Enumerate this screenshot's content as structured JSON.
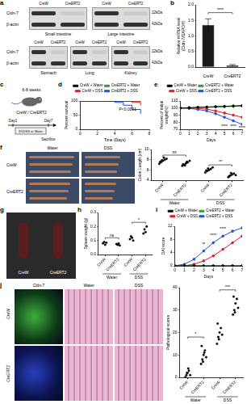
{
  "figure": {
    "a": {
      "panel": "a",
      "lane_labels": [
        "CreW",
        "CreERT2"
      ],
      "bands": [
        "Cldn-7",
        "β-actin"
      ],
      "sizes": [
        "22kDa",
        "42kDa"
      ],
      "rows": [
        {
          "tissues": [
            "Small intestine",
            "Large intestine"
          ]
        },
        {
          "tissues": [
            "Stomach",
            "Lung",
            "Kidney"
          ]
        }
      ]
    },
    "c": {
      "panel": "c",
      "age": "6-8 weeks",
      "mice": "CreW / CreERT2",
      "start": "Day1",
      "end": "Day7",
      "treatment": "3%DSS or Water",
      "endpoint": "Sacrifice"
    },
    "f": {
      "panel": "f",
      "columns": [
        "Water",
        "DSS"
      ],
      "rows": [
        "CreW",
        "CreERT2"
      ]
    },
    "g": {
      "panel": "g",
      "labels": [
        "CreW",
        "CreERT2"
      ]
    },
    "j": {
      "panel": "j",
      "columns": [
        "Cldn-7",
        "Water",
        "DSS"
      ],
      "rows": [
        "CreW",
        "CreERT2"
      ]
    }
  },
  "chart_data": [
    {
      "panel": "b",
      "type": "bar",
      "categories": [
        "CreW",
        "CreERT2"
      ],
      "values": [
        1.35,
        0.05
      ],
      "errors": [
        0.2,
        0.03
      ],
      "color": "#1a1a1a",
      "y_label": [
        "Relative mRNA level",
        "(Cldn-7/GAPDH)"
      ],
      "ylim": [
        0,
        2
      ],
      "yticks": [
        {
          "value": 0,
          "label": "0.0"
        },
        0.5,
        {
          "value": 1,
          "label": "1.0"
        },
        1.5,
        {
          "value": 2,
          "label": "2.0"
        }
      ],
      "grid": false,
      "annotations": [
        {
          "text": "****",
          "from": 0,
          "to": 1,
          "y": 1.75
        }
      ]
    },
    {
      "panel": "d",
      "type": "line",
      "line_style": "step",
      "x": [
        0,
        1,
        2,
        3,
        4,
        5,
        6,
        7
      ],
      "series": [
        {
          "name": "CreW + Water",
          "color": "#000000",
          "values": [
            100,
            100,
            100,
            100,
            100,
            100,
            100,
            100
          ]
        },
        {
          "name": "CreERT2 + Water",
          "color": "#2ca02c",
          "values": [
            100,
            100,
            100,
            100,
            100,
            100,
            100,
            100
          ]
        },
        {
          "name": "CreW + DSS",
          "color": "#e31a1c",
          "values": [
            100,
            100,
            100,
            100,
            100,
            100,
            95,
            85
          ]
        },
        {
          "name": "CreERT2 + DSS",
          "color": "#1f4fd8",
          "values": [
            100,
            100,
            100,
            100,
            95,
            85,
            70,
            55
          ]
        }
      ],
      "x_label": "Time (Days)",
      "y_label": "Percent survival",
      "xlim": [
        0,
        8
      ],
      "xticks": [
        0,
        2,
        4,
        6,
        8
      ],
      "ylim": [
        0,
        100
      ],
      "yticks": [
        0,
        50,
        100
      ],
      "grid": false,
      "legend": "top",
      "annotations": [
        {
          "text": "P<0.0001",
          "x": 5.5,
          "y": 70
        }
      ]
    },
    {
      "panel": "e",
      "type": "line",
      "marker": "circle",
      "x": [
        0,
        1,
        2,
        3,
        4,
        5,
        6,
        7
      ],
      "series": [
        {
          "name": "CreW + Water",
          "color": "#000000",
          "values": [
            100,
            100.5,
            101,
            101.5,
            102,
            102.5,
            103,
            103.5
          ]
        },
        {
          "name": "CreERT2 + Water",
          "color": "#2ca02c",
          "values": [
            100,
            100.2,
            100.8,
            101,
            101.6,
            102,
            102.4,
            102.8
          ]
        },
        {
          "name": "CreW + DSS",
          "color": "#e31a1c",
          "values": [
            100,
            100,
            99.5,
            98.5,
            96,
            93,
            90,
            87
          ]
        },
        {
          "name": "CreERT2 + DSS",
          "color": "#1f4fd8",
          "values": [
            100,
            99.5,
            98,
            96,
            92,
            87,
            82,
            77
          ]
        }
      ],
      "x_label": "Days",
      "y_label": [
        "Percent of initial",
        "weight(%)"
      ],
      "xlim": [
        0,
        7
      ],
      "xticks": [
        0,
        1,
        2,
        3,
        4,
        5,
        6,
        7
      ],
      "ylim": [
        70,
        110
      ],
      "yticks": [
        70,
        80,
        90,
        100,
        110
      ],
      "grid": false,
      "legend": "top",
      "annotations": [
        {
          "text": "****",
          "x": 5,
          "y": 74
        },
        {
          "text": "****",
          "x": 6,
          "y": 74
        },
        {
          "text": "****",
          "x": 7,
          "y": 72
        }
      ]
    },
    {
      "panel": "f",
      "type": "scatter",
      "categories": [
        "CreW",
        "CreERT2",
        "CreW",
        "CreERT2"
      ],
      "group_labels": [
        "Water",
        "DSS"
      ],
      "marker": "circle",
      "color": "#000000",
      "points": [
        [
          7.2,
          7.5,
          7.8,
          8.0,
          8.2,
          7.6,
          7.9,
          8.4
        ],
        [
          6.8,
          7.0,
          7.3,
          7.5,
          7.8,
          7.1,
          6.9,
          7.6
        ],
        [
          5.5,
          5.8,
          6.0,
          6.2,
          6.5,
          5.9,
          6.3
        ],
        [
          4.6,
          4.9,
          5.1,
          5.3,
          5.0,
          4.8,
          5.4
        ]
      ],
      "y_label": "Colon Length (cm)",
      "ylim": [
        4,
        10
      ],
      "yticks": [
        4,
        6,
        8,
        10
      ],
      "grid": false,
      "annotations": [
        {
          "text": "ns",
          "from": 0,
          "to": 1,
          "y": 8.9
        },
        {
          "text": "**",
          "from": 2,
          "to": 3,
          "y": 7.0
        }
      ]
    },
    {
      "panel": "h",
      "type": "scatter",
      "categories": [
        "CreW",
        "CreERT2",
        "CreW",
        "CreERT2"
      ],
      "group_labels": [
        "Water",
        "DSS"
      ],
      "marker": "circle",
      "color": "#000000",
      "points": [
        [
          0.08,
          0.09,
          0.07,
          0.085
        ],
        [
          0.075,
          0.07,
          0.08,
          0.065
        ],
        [
          0.11,
          0.13,
          0.12,
          0.1
        ],
        [
          0.15,
          0.18,
          0.16,
          0.2
        ]
      ],
      "y_label": "Spleen weight (g)",
      "ylim": [
        0,
        0.3
      ],
      "yticks": [
        {
          "value": 0,
          "label": "0.0"
        },
        0.1,
        0.2,
        0.3
      ],
      "grid": false,
      "annotations": [
        {
          "text": "ns",
          "from": 0,
          "to": 1,
          "y": 0.12
        },
        {
          "text": "*",
          "from": 2,
          "to": 3,
          "y": 0.23
        }
      ]
    },
    {
      "panel": "i",
      "type": "line",
      "marker": "circle",
      "x": [
        0,
        1,
        2,
        3,
        4,
        5,
        6,
        7
      ],
      "series": [
        {
          "name": "CreW + Water",
          "color": "#000000",
          "values": [
            0,
            0,
            0,
            0,
            0,
            0,
            0,
            0
          ]
        },
        {
          "name": "CreERT2 + Water",
          "color": "#2ca02c",
          "values": [
            0,
            0,
            0,
            0,
            0,
            0,
            0,
            0
          ]
        },
        {
          "name": "CreW + DSS",
          "color": "#e31a1c",
          "values": [
            0,
            0,
            0.5,
            1.5,
            3,
            5,
            7,
            9
          ]
        },
        {
          "name": "CreERT2 + DSS",
          "color": "#1f4fd8",
          "values": [
            0,
            0.5,
            2,
            4.5,
            7,
            9,
            10.5,
            11.5
          ]
        }
      ],
      "x_label": "Days",
      "y_label": "DAI score",
      "xlim": [
        0,
        7
      ],
      "xticks": [
        0,
        1,
        2,
        3,
        4,
        5,
        6,
        7
      ],
      "ylim": [
        0,
        12
      ],
      "yticks": [
        0,
        4,
        8,
        12
      ],
      "grid": false,
      "legend": "top",
      "annotations": [
        {
          "text": "**",
          "x": 3,
          "y": 6.5
        },
        {
          "text": "****",
          "x": 4,
          "y": 9.2
        },
        {
          "text": "****",
          "x": 5,
          "y": 11.2
        }
      ]
    },
    {
      "panel": "j",
      "type": "scatter",
      "categories": [
        "CreW",
        "CreERT2",
        "CreW",
        "CreERT2"
      ],
      "group_labels": [
        "Water",
        "DSS"
      ],
      "marker": "circle",
      "color": "#000000",
      "points": [
        [
          0,
          1,
          2,
          3,
          1,
          0,
          2,
          4
        ],
        [
          6,
          8,
          10,
          12,
          9,
          14,
          7,
          11
        ],
        [
          15,
          18,
          20,
          22,
          19,
          24,
          17
        ],
        [
          28,
          30,
          33,
          35,
          31,
          36,
          29
        ]
      ],
      "y_label": "Pathological scores",
      "ylim": [
        0,
        40
      ],
      "yticks": [
        0,
        10,
        20,
        30,
        40
      ],
      "grid": false,
      "annotations": [
        {
          "text": "*",
          "from": 0,
          "to": 1,
          "y": 18
        },
        {
          "text": "***",
          "from": 2,
          "to": 3,
          "y": 39
        }
      ]
    }
  ]
}
